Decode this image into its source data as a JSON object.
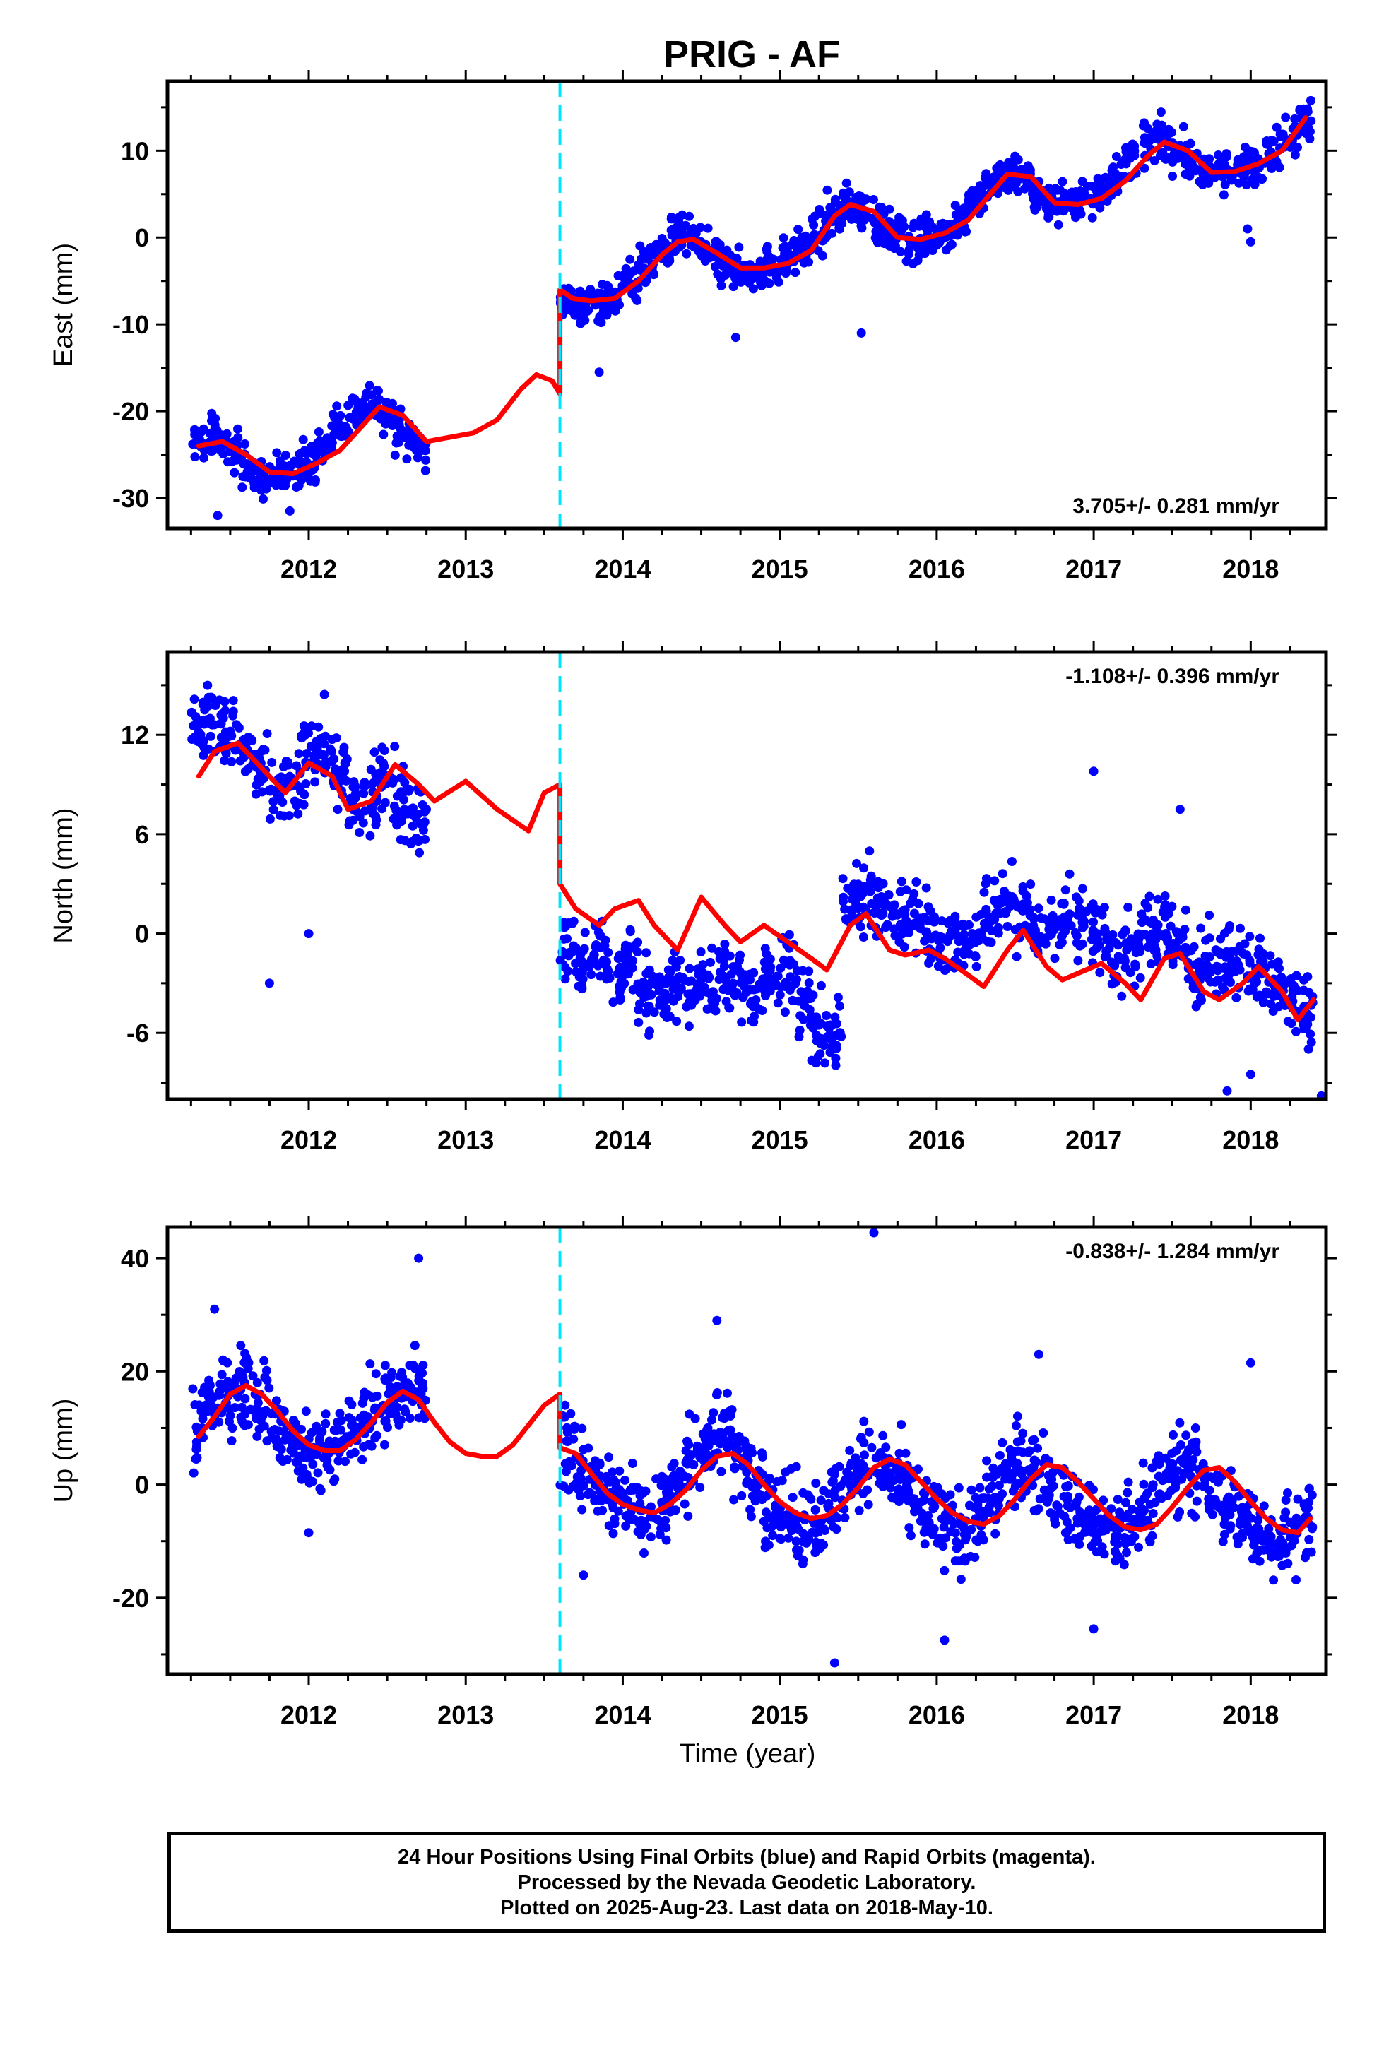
{
  "title": "PRIG - AF",
  "xlabel": "Time (year)",
  "footer": {
    "line1": "24 Hour Positions Using Final Orbits (blue) and Rapid Orbits (magenta).",
    "line2": "Processed by the Nevada Geodetic Laboratory.",
    "line3": "Plotted on 2025-Aug-23. Last data on 2018-May-10."
  },
  "colors": {
    "observations": "#0000ff",
    "model": "#ff0000",
    "offset_line": "#00e5ff",
    "frame": "#000000"
  },
  "chart_data": [
    {
      "type": "scatter",
      "ylabel": "East (mm)",
      "rate_label": "3.705+/- 0.281 mm/yr",
      "rate_position": "bottom-right",
      "xlim": [
        2011.1,
        2018.48
      ],
      "ylim": [
        -33.5,
        18
      ],
      "x_ticks": [
        2012,
        2013,
        2014,
        2015,
        2016,
        2017,
        2018
      ],
      "y_ticks": [
        -30,
        -20,
        -10,
        0,
        10
      ],
      "offset_line_x": 2013.6,
      "model": {
        "rate": 3.705,
        "annual_amplitude": 4.0,
        "annual_peak": 0.45,
        "gap_model_from": 2012.75,
        "gap_model_to": 2013.6
      },
      "series": [
        {
          "style": "points",
          "x": [
            2011.3,
            2011.4,
            2011.5,
            2011.6,
            2011.7,
            2011.8,
            2011.9,
            2012.0,
            2012.1,
            2012.2,
            2012.3,
            2012.4,
            2012.5,
            2012.6,
            2012.7,
            2013.65,
            2013.75,
            2013.85,
            2013.95,
            2014.05,
            2014.15,
            2014.25,
            2014.35,
            2014.45,
            2014.55,
            2014.65,
            2014.75,
            2014.85,
            2014.95,
            2015.05,
            2015.15,
            2015.25,
            2015.35,
            2015.45,
            2015.55,
            2015.65,
            2015.75,
            2015.85,
            2015.95,
            2016.05,
            2016.15,
            2016.25,
            2016.35,
            2016.45,
            2016.55,
            2016.65,
            2016.75,
            2016.85,
            2016.95,
            2017.05,
            2017.15,
            2017.25,
            2017.35,
            2017.45,
            2017.55,
            2017.65,
            2017.75,
            2017.85,
            2017.95,
            2018.05,
            2018.15,
            2018.25,
            2018.35
          ],
          "y": [
            -23.5,
            -22.8,
            -24.6,
            -26.2,
            -27.8,
            -27.4,
            -26.8,
            -25.6,
            -24.0,
            -21.8,
            -19.9,
            -18.9,
            -20.5,
            -22.7,
            -24.0,
            -7.2,
            -8.0,
            -7.4,
            -6.6,
            -5.0,
            -3.3,
            -1.5,
            0.0,
            -0.3,
            -1.7,
            -3.2,
            -3.9,
            -3.8,
            -3.2,
            -2.5,
            -1.3,
            0.5,
            2.7,
            3.8,
            3.2,
            1.5,
            0.0,
            -0.4,
            0.1,
            0.8,
            2.1,
            4.1,
            6.4,
            7.7,
            6.8,
            4.9,
            3.8,
            3.9,
            4.5,
            5.4,
            7.0,
            9.2,
            10.9,
            11.2,
            9.7,
            8.0,
            7.5,
            7.7,
            8.1,
            8.8,
            10.0,
            12.0,
            14.0
          ],
          "outliers": {
            "x": [
              2011.42,
              2011.88,
              2013.85,
              2014.72,
              2015.52,
              2017.98,
              2018.0
            ],
            "y": [
              -32.0,
              -31.5,
              -15.5,
              -11.5,
              -11.0,
              1.0,
              -0.5
            ]
          }
        },
        {
          "style": "line",
          "name": "model",
          "x": [
            2011.3,
            2011.45,
            2011.6,
            2011.75,
            2011.9,
            2012.05,
            2012.2,
            2012.35,
            2012.45,
            2012.6,
            2012.75,
            2012.9,
            2013.05,
            2013.2,
            2013.35,
            2013.45,
            2013.55,
            2013.6,
            2013.6,
            2013.68,
            2013.8,
            2013.95,
            2014.1,
            2014.25,
            2014.35,
            2014.45,
            2014.6,
            2014.75,
            2014.9,
            2015.05,
            2015.2,
            2015.35,
            2015.45,
            2015.6,
            2015.75,
            2015.9,
            2016.05,
            2016.2,
            2016.35,
            2016.45,
            2016.6,
            2016.75,
            2016.9,
            2017.05,
            2017.2,
            2017.35,
            2017.45,
            2017.6,
            2017.75,
            2017.9,
            2018.05,
            2018.2,
            2018.35
          ],
          "y": [
            -24.0,
            -23.5,
            -25.0,
            -27.0,
            -27.2,
            -26.0,
            -24.5,
            -21.5,
            -19.5,
            -20.5,
            -23.5,
            -23.0,
            -22.5,
            -21.0,
            -17.5,
            -15.8,
            -16.5,
            -18.0,
            -6.0,
            -7.0,
            -7.3,
            -7.0,
            -5.0,
            -2.0,
            -0.5,
            -0.2,
            -1.8,
            -3.5,
            -3.5,
            -3.0,
            -1.5,
            2.5,
            3.8,
            3.0,
            0.0,
            -0.2,
            0.5,
            2.0,
            5.2,
            7.3,
            7.0,
            4.0,
            3.8,
            4.5,
            6.5,
            9.5,
            11.0,
            10.0,
            7.5,
            7.6,
            8.5,
            10.0,
            13.8
          ]
        }
      ]
    },
    {
      "type": "scatter",
      "ylabel": "North (mm)",
      "rate_label": "-1.108+/- 0.396 mm/yr",
      "rate_position": "top-right",
      "xlim": [
        2011.1,
        2018.48
      ],
      "ylim": [
        -10,
        17
      ],
      "x_ticks": [
        2012,
        2013,
        2014,
        2015,
        2016,
        2017,
        2018
      ],
      "y_ticks": [
        -6,
        0,
        6,
        12
      ],
      "offset_line_x": 2013.6,
      "model": {
        "rate": -1.108,
        "annual_amplitude": 1.0,
        "semiannual_amplitude": 0.8,
        "gap_model_from": 2012.75,
        "gap_model_to": 2013.6
      },
      "series": [
        {
          "style": "points",
          "x": [
            2011.3,
            2011.4,
            2011.5,
            2011.6,
            2011.7,
            2011.8,
            2011.9,
            2012.0,
            2012.1,
            2012.2,
            2012.3,
            2012.4,
            2012.5,
            2012.6,
            2012.7,
            2013.65,
            2013.75,
            2013.85,
            2013.95,
            2014.05,
            2014.15,
            2014.25,
            2014.35,
            2014.45,
            2014.55,
            2014.65,
            2014.75,
            2014.85,
            2014.95,
            2015.05,
            2015.15,
            2015.25,
            2015.35,
            2015.45,
            2015.55,
            2015.65,
            2015.75,
            2015.85,
            2015.95,
            2016.05,
            2016.15,
            2016.25,
            2016.35,
            2016.45,
            2016.55,
            2016.65,
            2016.75,
            2016.85,
            2016.95,
            2017.05,
            2017.15,
            2017.25,
            2017.35,
            2017.45,
            2017.55,
            2017.65,
            2017.75,
            2017.85,
            2017.95,
            2018.05,
            2018.15,
            2018.25,
            2018.35
          ],
          "y": [
            12.5,
            13.0,
            12.0,
            11.0,
            9.5,
            8.5,
            9.0,
            10.5,
            11.5,
            9.5,
            7.5,
            8.0,
            9.5,
            8.0,
            7.0,
            -1.0,
            -2.0,
            -1.0,
            -2.5,
            -1.5,
            -3.5,
            -4.0,
            -3.0,
            -3.5,
            -3.0,
            -2.5,
            -3.0,
            -3.5,
            -2.5,
            -2.0,
            -4.0,
            -6.0,
            -6.5,
            2.5,
            2.0,
            1.5,
            1.0,
            1.0,
            0.5,
            -0.5,
            -0.5,
            0.0,
            1.0,
            2.0,
            1.0,
            0.0,
            0.5,
            1.0,
            0.5,
            -0.5,
            -1.5,
            -1.0,
            0.0,
            0.5,
            -1.0,
            -2.5,
            -2.0,
            -1.5,
            -2.0,
            -2.5,
            -3.0,
            -3.5,
            -4.5
          ],
          "outliers": {
            "x": [
              2011.75,
              2012.0,
              2017.0,
              2017.55,
              2017.85,
              2018.0,
              2018.45
            ],
            "y": [
              -3.0,
              0.0,
              9.8,
              7.5,
              -9.5,
              -8.5,
              -9.8
            ]
          }
        },
        {
          "style": "line",
          "name": "model",
          "x": [
            2011.3,
            2011.4,
            2011.55,
            2011.7,
            2011.85,
            2012.0,
            2012.15,
            2012.25,
            2012.4,
            2012.55,
            2012.7,
            2012.8,
            2013.0,
            2013.2,
            2013.4,
            2013.5,
            2013.6,
            2013.6,
            2013.7,
            2013.85,
            2013.95,
            2014.1,
            2014.2,
            2014.35,
            2014.5,
            2014.65,
            2014.75,
            2014.9,
            2015.05,
            2015.2,
            2015.3,
            2015.45,
            2015.55,
            2015.7,
            2015.8,
            2015.95,
            2016.05,
            2016.2,
            2016.3,
            2016.45,
            2016.55,
            2016.7,
            2016.8,
            2016.95,
            2017.05,
            2017.2,
            2017.3,
            2017.45,
            2017.55,
            2017.7,
            2017.8,
            2017.95,
            2018.05,
            2018.2,
            2018.3,
            2018.4
          ],
          "y": [
            9.5,
            11.0,
            11.5,
            10.0,
            8.5,
            10.3,
            9.5,
            7.5,
            8.0,
            10.2,
            9.0,
            8.0,
            9.2,
            7.5,
            6.2,
            8.5,
            9.0,
            3.0,
            1.5,
            0.5,
            1.5,
            2.0,
            0.5,
            -1.0,
            2.2,
            0.5,
            -0.5,
            0.5,
            -0.5,
            -1.5,
            -2.2,
            0.5,
            1.2,
            -1.0,
            -1.3,
            -1.0,
            -1.5,
            -2.5,
            -3.2,
            -1.0,
            0.2,
            -2.0,
            -2.8,
            -2.2,
            -1.8,
            -3.0,
            -4.0,
            -1.5,
            -1.2,
            -3.5,
            -4.0,
            -3.0,
            -2.0,
            -3.5,
            -5.2,
            -4.0
          ]
        }
      ]
    },
    {
      "type": "scatter",
      "ylabel": "Up (mm)",
      "rate_label": "-0.838+/- 1.284 mm/yr",
      "rate_position": "top-right",
      "xlim": [
        2011.1,
        2018.48
      ],
      "ylim": [
        -33.5,
        45.5
      ],
      "x_ticks": [
        2012,
        2013,
        2014,
        2015,
        2016,
        2017,
        2018
      ],
      "y_ticks": [
        -20,
        0,
        20,
        40
      ],
      "offset_line_x": 2013.6,
      "model": {
        "rate": -0.838,
        "annual_amplitude": 6.0,
        "gap_model_from": 2012.75,
        "gap_model_to": 2013.6
      },
      "series": [
        {
          "style": "points",
          "x": [
            2011.3,
            2011.4,
            2011.5,
            2011.6,
            2011.7,
            2011.8,
            2011.9,
            2012.0,
            2012.1,
            2012.2,
            2012.3,
            2012.4,
            2012.5,
            2012.6,
            2012.7,
            2013.65,
            2013.75,
            2013.85,
            2013.95,
            2014.05,
            2014.15,
            2014.25,
            2014.35,
            2014.45,
            2014.55,
            2014.65,
            2014.75,
            2014.85,
            2014.95,
            2015.05,
            2015.15,
            2015.25,
            2015.35,
            2015.45,
            2015.55,
            2015.65,
            2015.75,
            2015.85,
            2015.95,
            2016.05,
            2016.15,
            2016.25,
            2016.35,
            2016.45,
            2016.55,
            2016.65,
            2016.75,
            2016.85,
            2016.95,
            2017.05,
            2017.15,
            2017.25,
            2017.35,
            2017.45,
            2017.55,
            2017.65,
            2017.75,
            2017.85,
            2017.95,
            2018.05,
            2018.15,
            2018.25,
            2018.35
          ],
          "y": [
            10.0,
            14.0,
            17.0,
            18.0,
            14.0,
            10.0,
            8.0,
            6.0,
            5.0,
            6.5,
            9.0,
            13.0,
            15.0,
            17.0,
            16.0,
            6.0,
            3.0,
            0.0,
            -2.0,
            -3.5,
            -5.0,
            -3.0,
            0.0,
            4.0,
            8.0,
            9.0,
            5.0,
            0.0,
            -3.0,
            -5.0,
            -7.0,
            -6.0,
            -3.0,
            1.0,
            4.0,
            3.0,
            0.0,
            -3.0,
            -5.5,
            -7.0,
            -8.0,
            -6.0,
            -2.0,
            2.0,
            4.0,
            2.0,
            -1.0,
            -4.0,
            -6.0,
            -8.0,
            -9.0,
            -7.0,
            -3.0,
            1.0,
            3.0,
            2.0,
            -1.0,
            -4.0,
            -6.0,
            -8.0,
            -9.0,
            -8.5,
            -6.0
          ],
          "outliers": {
            "x": [
              2011.4,
              2012.0,
              2012.7,
              2013.75,
              2014.6,
              2015.35,
              2015.6,
              2016.05,
              2016.65,
              2017.0,
              2018.0
            ],
            "y": [
              31.0,
              -8.5,
              40.0,
              -16.0,
              29.0,
              -31.5,
              44.5,
              -27.5,
              23.0,
              -25.5,
              21.5
            ]
          }
        },
        {
          "style": "line",
          "name": "model",
          "x": [
            2011.3,
            2011.4,
            2011.5,
            2011.6,
            2011.7,
            2011.8,
            2011.9,
            2012.0,
            2012.1,
            2012.2,
            2012.3,
            2012.4,
            2012.5,
            2012.6,
            2012.7,
            2012.8,
            2012.9,
            2013.0,
            2013.1,
            2013.2,
            2013.3,
            2013.4,
            2013.5,
            2013.6,
            2013.6,
            2013.7,
            2013.8,
            2013.9,
            2014.0,
            2014.1,
            2014.2,
            2014.3,
            2014.4,
            2014.5,
            2014.6,
            2014.7,
            2014.8,
            2014.9,
            2015.0,
            2015.1,
            2015.2,
            2015.3,
            2015.4,
            2015.5,
            2015.6,
            2015.7,
            2015.8,
            2015.9,
            2016.0,
            2016.1,
            2016.2,
            2016.3,
            2016.4,
            2016.5,
            2016.6,
            2016.7,
            2016.8,
            2016.9,
            2017.0,
            2017.1,
            2017.2,
            2017.3,
            2017.4,
            2017.5,
            2017.6,
            2017.7,
            2017.8,
            2017.9,
            2018.0,
            2018.1,
            2018.2,
            2018.3,
            2018.38
          ],
          "y": [
            8.5,
            12.0,
            16.0,
            17.5,
            16.0,
            13.0,
            9.5,
            7.0,
            6.0,
            6.0,
            8.0,
            11.0,
            14.5,
            16.5,
            15.0,
            11.0,
            7.5,
            5.5,
            5.0,
            5.0,
            7.0,
            10.5,
            14.0,
            16.0,
            6.5,
            5.5,
            2.0,
            -1.5,
            -3.5,
            -4.5,
            -5.0,
            -3.5,
            -1.0,
            2.5,
            5.0,
            5.5,
            3.5,
            0.0,
            -3.0,
            -5.0,
            -6.0,
            -5.5,
            -3.5,
            -0.5,
            3.0,
            4.5,
            3.5,
            0.5,
            -2.5,
            -5.0,
            -6.5,
            -7.0,
            -5.5,
            -2.5,
            1.0,
            3.5,
            3.0,
            0.5,
            -2.5,
            -5.5,
            -7.5,
            -8.0,
            -7.0,
            -4.0,
            -0.5,
            2.5,
            3.0,
            0.5,
            -3.0,
            -6.0,
            -8.0,
            -8.5,
            -6.0
          ]
        }
      ]
    }
  ]
}
